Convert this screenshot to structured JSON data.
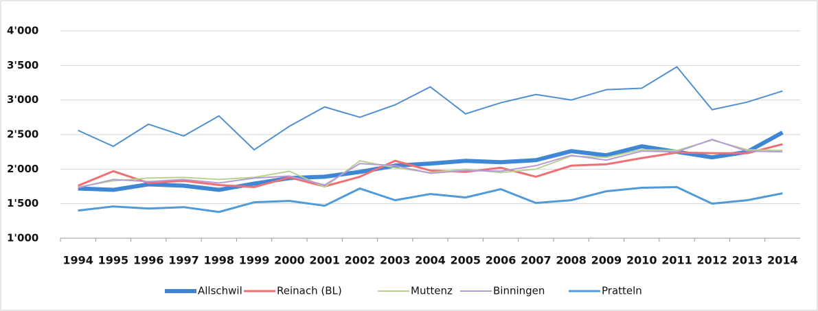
{
  "chart_data": {
    "type": "line",
    "categories": [
      "1994",
      "1995",
      "1996",
      "1997",
      "1998",
      "1999",
      "2000",
      "2001",
      "2002",
      "2003",
      "2004",
      "2005",
      "2006",
      "2007",
      "2008",
      "2009",
      "2010",
      "2011",
      "2012",
      "2013",
      "2014"
    ],
    "ylim": [
      1000,
      4000
    ],
    "yticks": [
      {
        "value": 1000,
        "label": "1'000"
      },
      {
        "value": 1500,
        "label": "1'500"
      },
      {
        "value": 2000,
        "label": "2'000"
      },
      {
        "value": 2500,
        "label": "2'500"
      },
      {
        "value": 3000,
        "label": "3'000"
      },
      {
        "value": 3500,
        "label": "3'500"
      },
      {
        "value": 4000,
        "label": "4'000"
      }
    ],
    "grid": true,
    "series": [
      {
        "color": "#4f8fd0",
        "values": [
          2560,
          2330,
          2650,
          2480,
          2770,
          2280,
          2620,
          2900,
          2750,
          2930,
          3190,
          2800,
          2960,
          3080,
          3000,
          3150,
          3170,
          3480,
          2860,
          2970,
          3130
        ]
      },
      {
        "name": "Allschwil",
        "color": "#3f86d4",
        "width": 6,
        "values": [
          1720,
          1700,
          1780,
          1760,
          1700,
          1790,
          1870,
          1890,
          1960,
          2050,
          2080,
          2120,
          2100,
          2130,
          2260,
          2200,
          2330,
          2250,
          2170,
          2250,
          2530
        ]
      },
      {
        "name": "Reinach (BL)",
        "color": "#ef6f73",
        "width": 3,
        "values": [
          1760,
          1970,
          1800,
          1830,
          1770,
          1740,
          1880,
          1750,
          1890,
          2120,
          1980,
          1960,
          2020,
          1890,
          2050,
          2070,
          2160,
          2240,
          2230,
          2230,
          2360
        ]
      },
      {
        "name": "Muttenz",
        "color": "#b9d38f",
        "width": 2,
        "values": [
          1740,
          1830,
          1870,
          1880,
          1850,
          1880,
          1970,
          1740,
          2120,
          2020,
          1950,
          2000,
          1950,
          2000,
          2190,
          2170,
          2280,
          2270,
          2420,
          2280,
          2270
        ]
      },
      {
        "name": "Binningen",
        "color": "#b49ad6",
        "width": 2,
        "values": [
          1730,
          1850,
          1820,
          1850,
          1800,
          1870,
          1900,
          1770,
          2080,
          2050,
          1940,
          1980,
          1970,
          2050,
          2200,
          2130,
          2260,
          2250,
          2430,
          2260,
          2250
        ]
      },
      {
        "name": "Pratteln",
        "color": "#4f9ad8",
        "width": 3,
        "values": [
          1400,
          1460,
          1430,
          1450,
          1380,
          1520,
          1540,
          1470,
          1720,
          1550,
          1640,
          1590,
          1710,
          1510,
          1550,
          1680,
          1730,
          1740,
          1500,
          1550,
          1650
        ]
      }
    ]
  }
}
